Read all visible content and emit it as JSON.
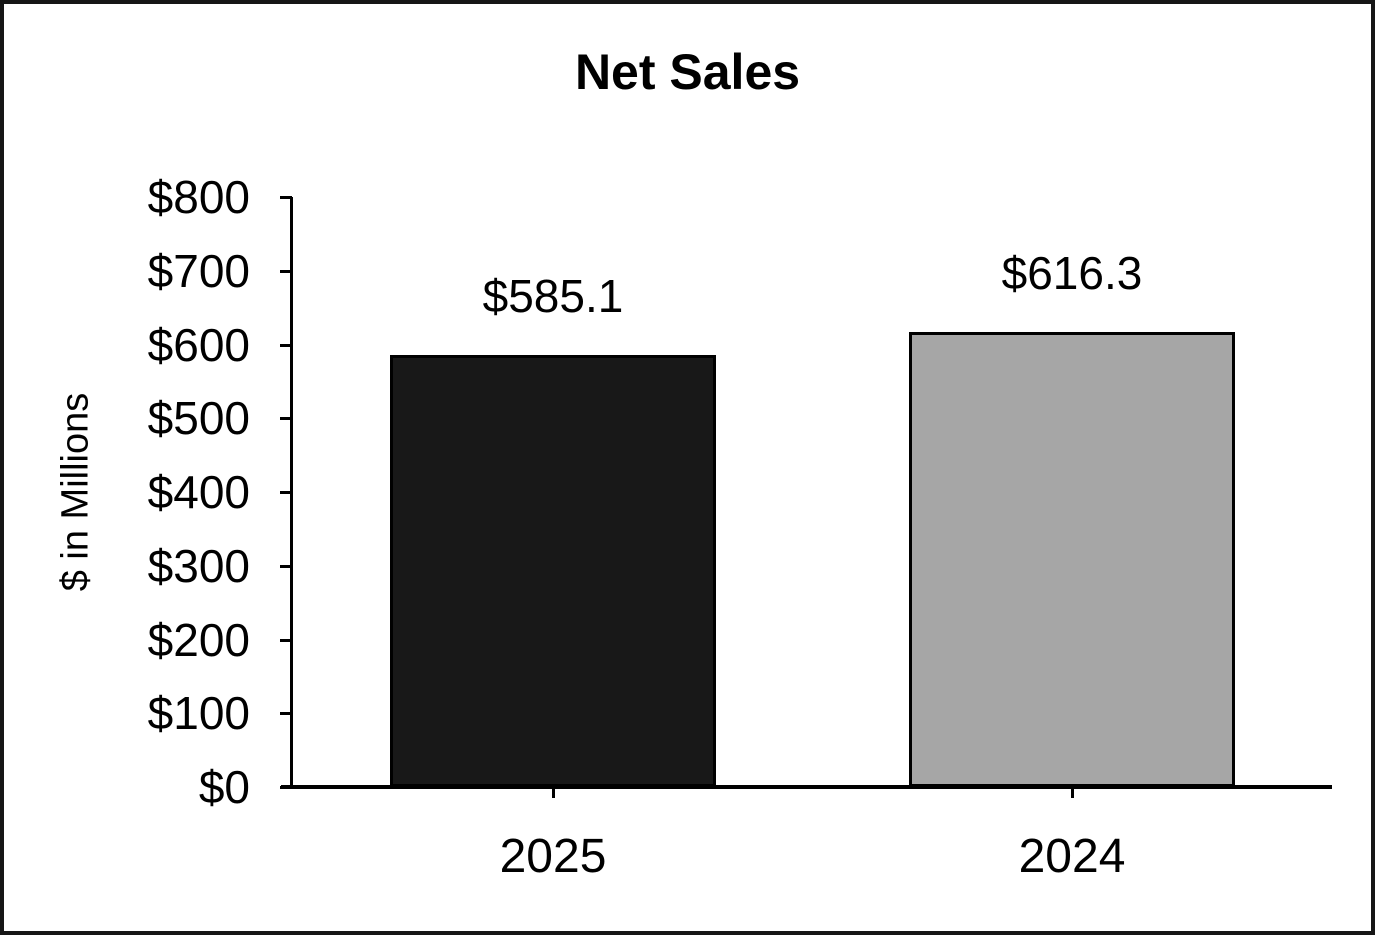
{
  "chart_data": {
    "type": "bar",
    "title": "Net Sales",
    "xlabel": "",
    "ylabel": "$ in Millions",
    "categories": [
      "2025",
      "2024"
    ],
    "values": [
      585.1,
      616.3
    ],
    "value_labels": [
      "$585.1",
      "$616.3"
    ],
    "bar_colors": [
      "#181818",
      "#a6a6a6"
    ],
    "bar_border_color": "#000000",
    "ylim": [
      0,
      800
    ],
    "yticks": [
      {
        "value": 0,
        "label": "$0"
      },
      {
        "value": 100,
        "label": "$100"
      },
      {
        "value": 200,
        "label": "$200"
      },
      {
        "value": 300,
        "label": "$300"
      },
      {
        "value": 400,
        "label": "$400"
      },
      {
        "value": 500,
        "label": "$500"
      },
      {
        "value": 600,
        "label": "$600"
      },
      {
        "value": 700,
        "label": "$700"
      },
      {
        "value": 800,
        "label": "$800"
      }
    ],
    "grid": false,
    "legend_position": "none",
    "frame_color": "#161616",
    "axis_color": "#000000",
    "text_color": "#000000",
    "background_color": "#ffffff"
  }
}
